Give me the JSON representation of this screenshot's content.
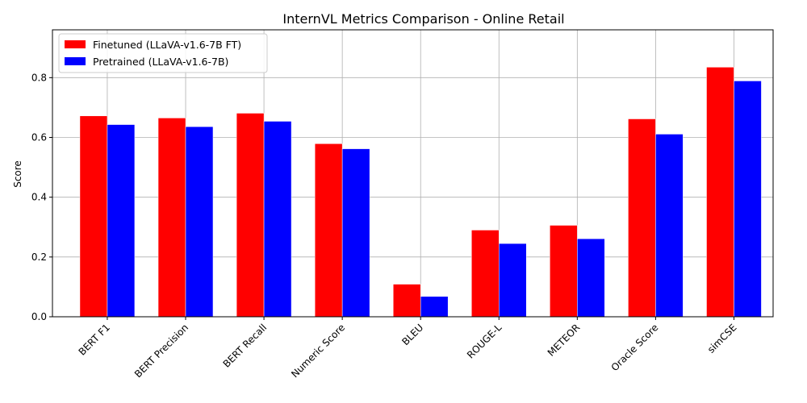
{
  "chart_data": {
    "type": "bar",
    "title": "InternVL Metrics Comparison - Online Retail",
    "xlabel": "",
    "ylabel": "Score",
    "ylim": [
      0,
      0.96
    ],
    "yticks": [
      0.0,
      0.2,
      0.4,
      0.6,
      0.8
    ],
    "ytick_labels": [
      "0.0",
      "0.2",
      "0.4",
      "0.6",
      "0.8"
    ],
    "grid": true,
    "legend_position": "top-left",
    "categories": [
      "BERT F1",
      "BERT Precision",
      "BERT Recall",
      "Numeric Score",
      "BLEU",
      "ROUGE-L",
      "METEOR",
      "Oracle Score",
      "simCSE"
    ],
    "series": [
      {
        "name": "Finetuned (LLaVA-v1.6-7B FT)",
        "color": "#ff0000",
        "values": [
          0.672,
          0.665,
          0.681,
          0.579,
          0.109,
          0.29,
          0.306,
          0.662,
          0.835
        ]
      },
      {
        "name": "Pretrained (LLaVA-v1.6-7B)",
        "color": "#0000ff",
        "values": [
          0.643,
          0.636,
          0.654,
          0.562,
          0.068,
          0.245,
          0.261,
          0.611,
          0.789
        ]
      }
    ]
  }
}
